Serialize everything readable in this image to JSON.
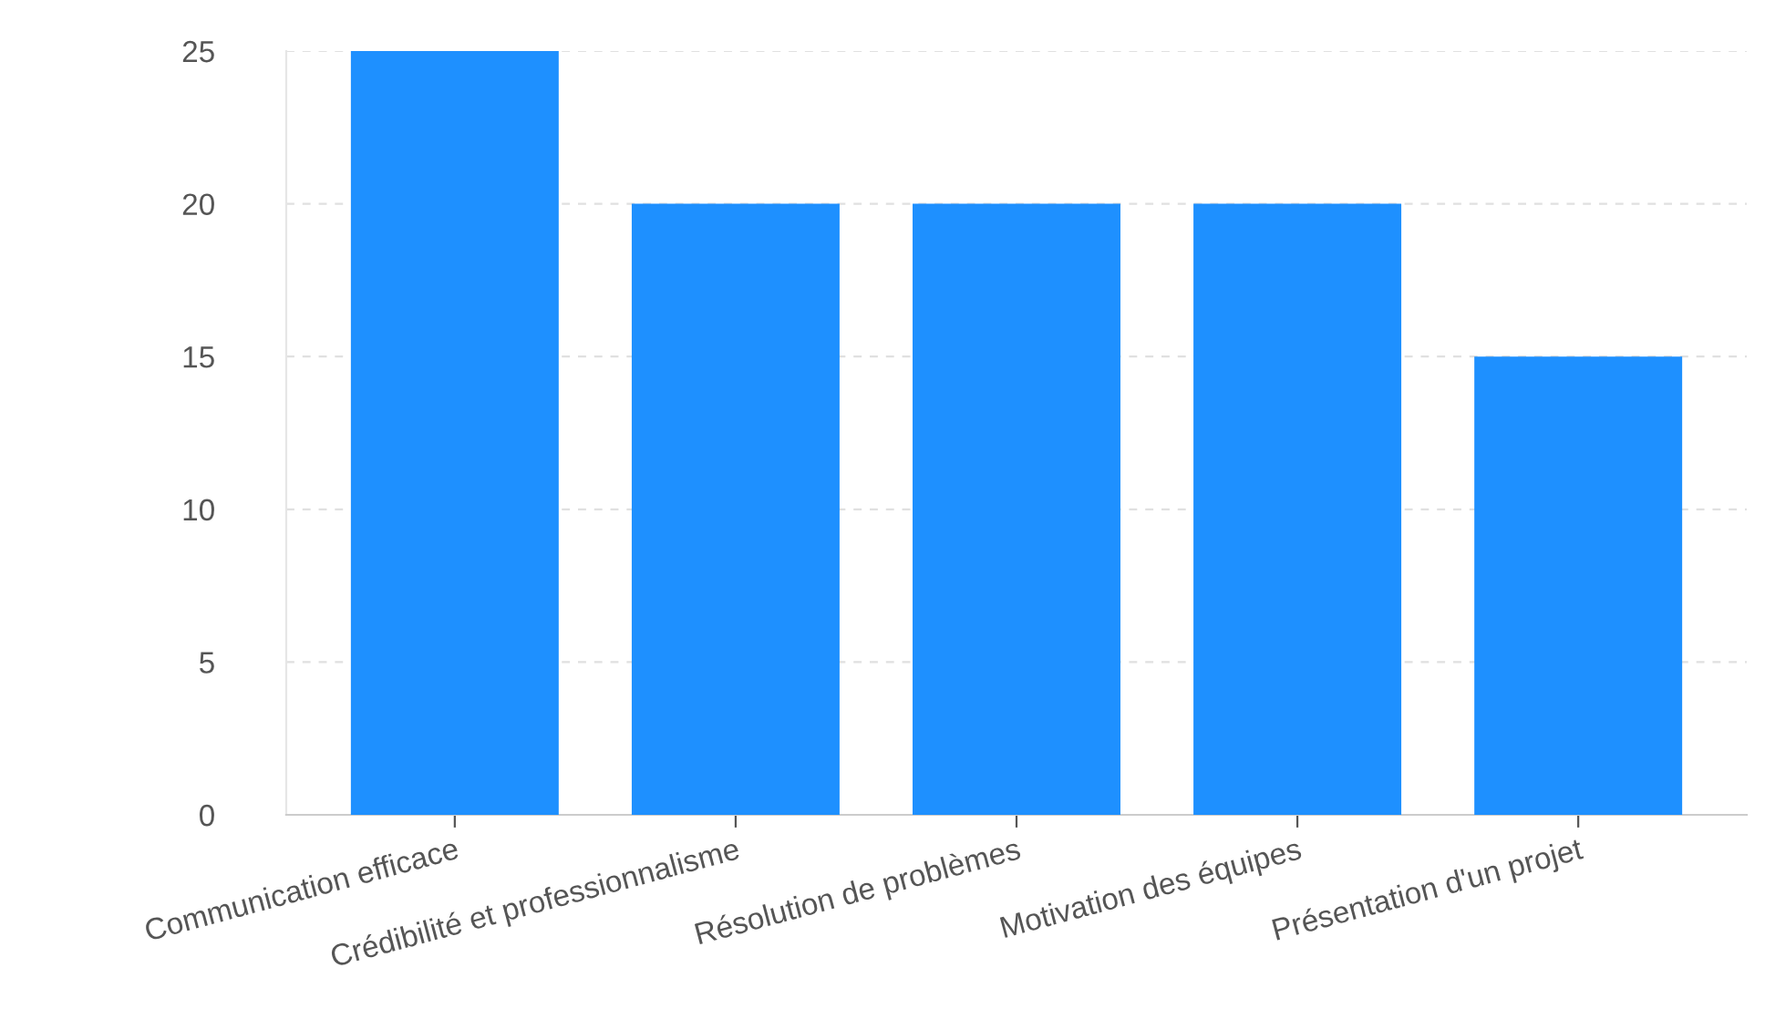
{
  "chart_data": {
    "type": "bar",
    "categories": [
      "Communication efficace",
      "Crédibilité et professionnalisme",
      "Résolution de problèmes",
      "Motivation des équipes",
      "Présentation d'un projet"
    ],
    "values": [
      25,
      20,
      20,
      20,
      15
    ],
    "color": "#1e90ff",
    "ylim": [
      0,
      25
    ],
    "yticks": [
      0,
      5,
      10,
      15,
      20,
      25
    ],
    "grid": "y",
    "legend": false
  }
}
